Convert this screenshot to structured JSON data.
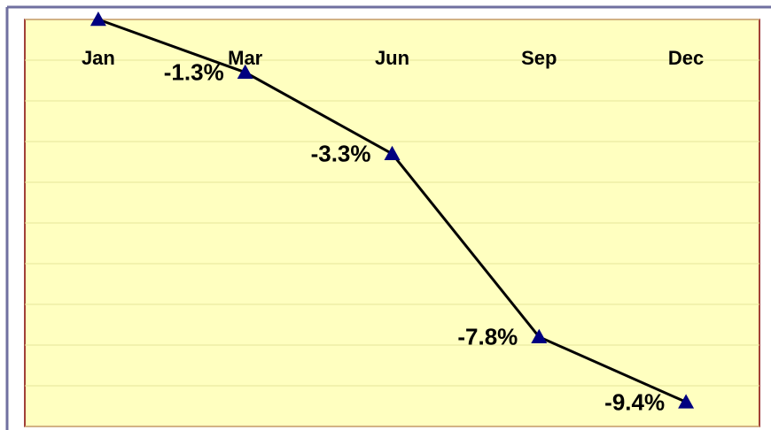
{
  "chart_data": {
    "type": "line",
    "categories": [
      "Jan",
      "Mar",
      "Jun",
      "Sep",
      "Dec"
    ],
    "values": [
      0,
      -1.3,
      -3.3,
      -7.8,
      -9.4
    ],
    "value_labels": [
      null,
      "-1.3%",
      "-3.3%",
      "-7.8%",
      "-9.4%"
    ],
    "color": "#000080",
    "ylim": [
      -10,
      0
    ],
    "yticks": [
      0,
      -1,
      -2,
      -3,
      -4,
      -5,
      -6,
      -7,
      -8,
      -9,
      -10
    ],
    "grid": true
  }
}
